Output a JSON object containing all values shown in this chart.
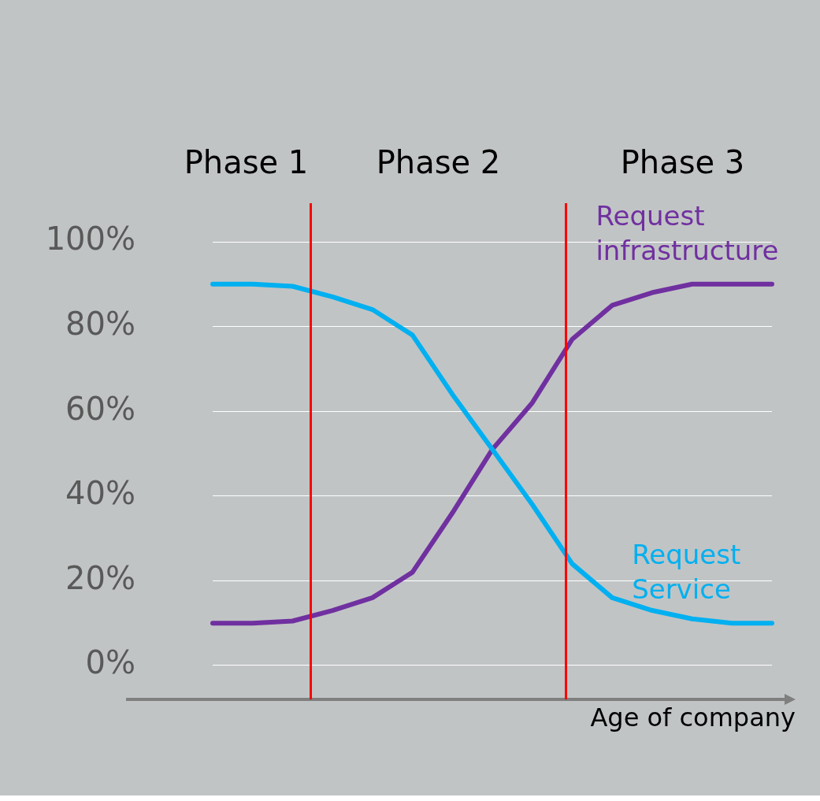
{
  "chart_data": {
    "type": "line",
    "xlabel": "Age of company",
    "categories": [
      null,
      null,
      null,
      null,
      null,
      null,
      null,
      null,
      null,
      null,
      null,
      null,
      null,
      null,
      null
    ],
    "series": [
      {
        "name": "Request Service",
        "color": "#00b0f0",
        "values": [
          90,
          90,
          89.5,
          87,
          84,
          78,
          64,
          51,
          38,
          24,
          16,
          13,
          11,
          10,
          10
        ]
      },
      {
        "name": "Request infrastructure",
        "color": "#7030a0",
        "values": [
          10,
          10,
          10.5,
          13,
          16,
          22,
          36,
          51,
          62,
          77,
          85,
          88,
          90,
          90,
          90
        ]
      }
    ],
    "ylim": [
      -8,
      100
    ],
    "yticks": [
      {
        "value": 0,
        "label": "0%"
      },
      {
        "value": 20,
        "label": "20%"
      },
      {
        "value": 40,
        "label": "40%"
      },
      {
        "value": 60,
        "label": "60%"
      },
      {
        "value": 80,
        "label": "80%"
      },
      {
        "value": 100,
        "label": "100%"
      }
    ],
    "annotations": [
      "Phase 1",
      "Phase 2",
      "Phase 3"
    ],
    "grid": "y",
    "legend": false,
    "marker": "none",
    "line_style": "solid"
  }
}
